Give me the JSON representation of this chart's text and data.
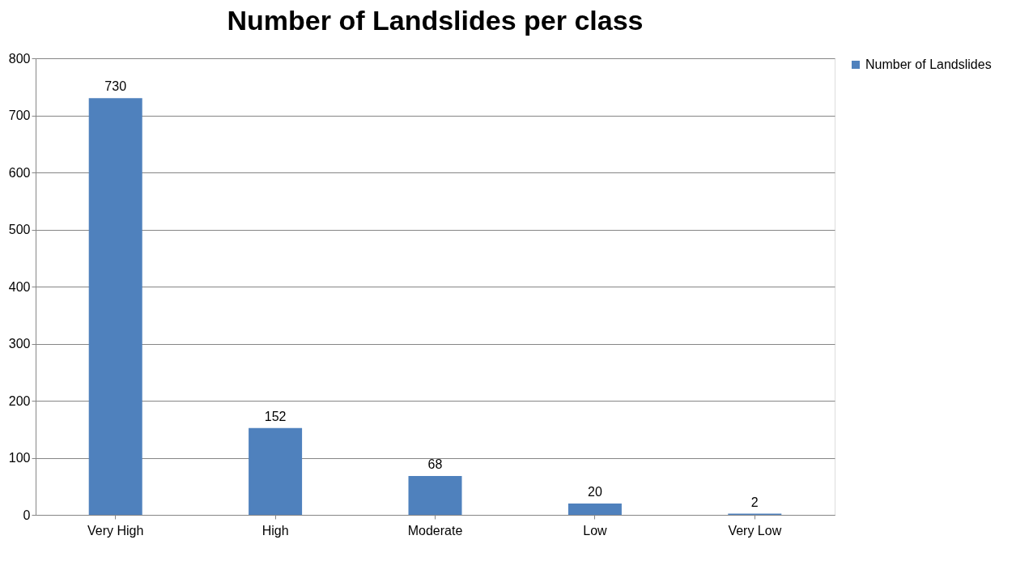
{
  "chart_data": {
    "type": "bar",
    "title": "Number of Landslides per class",
    "categories": [
      "Very High",
      "High",
      "Moderate",
      "Low",
      "Very Low"
    ],
    "series": [
      {
        "name": "Number of Landslides",
        "color": "#4f81bd",
        "values": [
          730,
          152,
          68,
          20,
          2
        ]
      }
    ],
    "ylim": [
      0,
      800
    ],
    "yticks": [
      0,
      100,
      200,
      300,
      400,
      500,
      600,
      700,
      800
    ],
    "grid": "y",
    "legend": "right",
    "data_labels": true
  }
}
